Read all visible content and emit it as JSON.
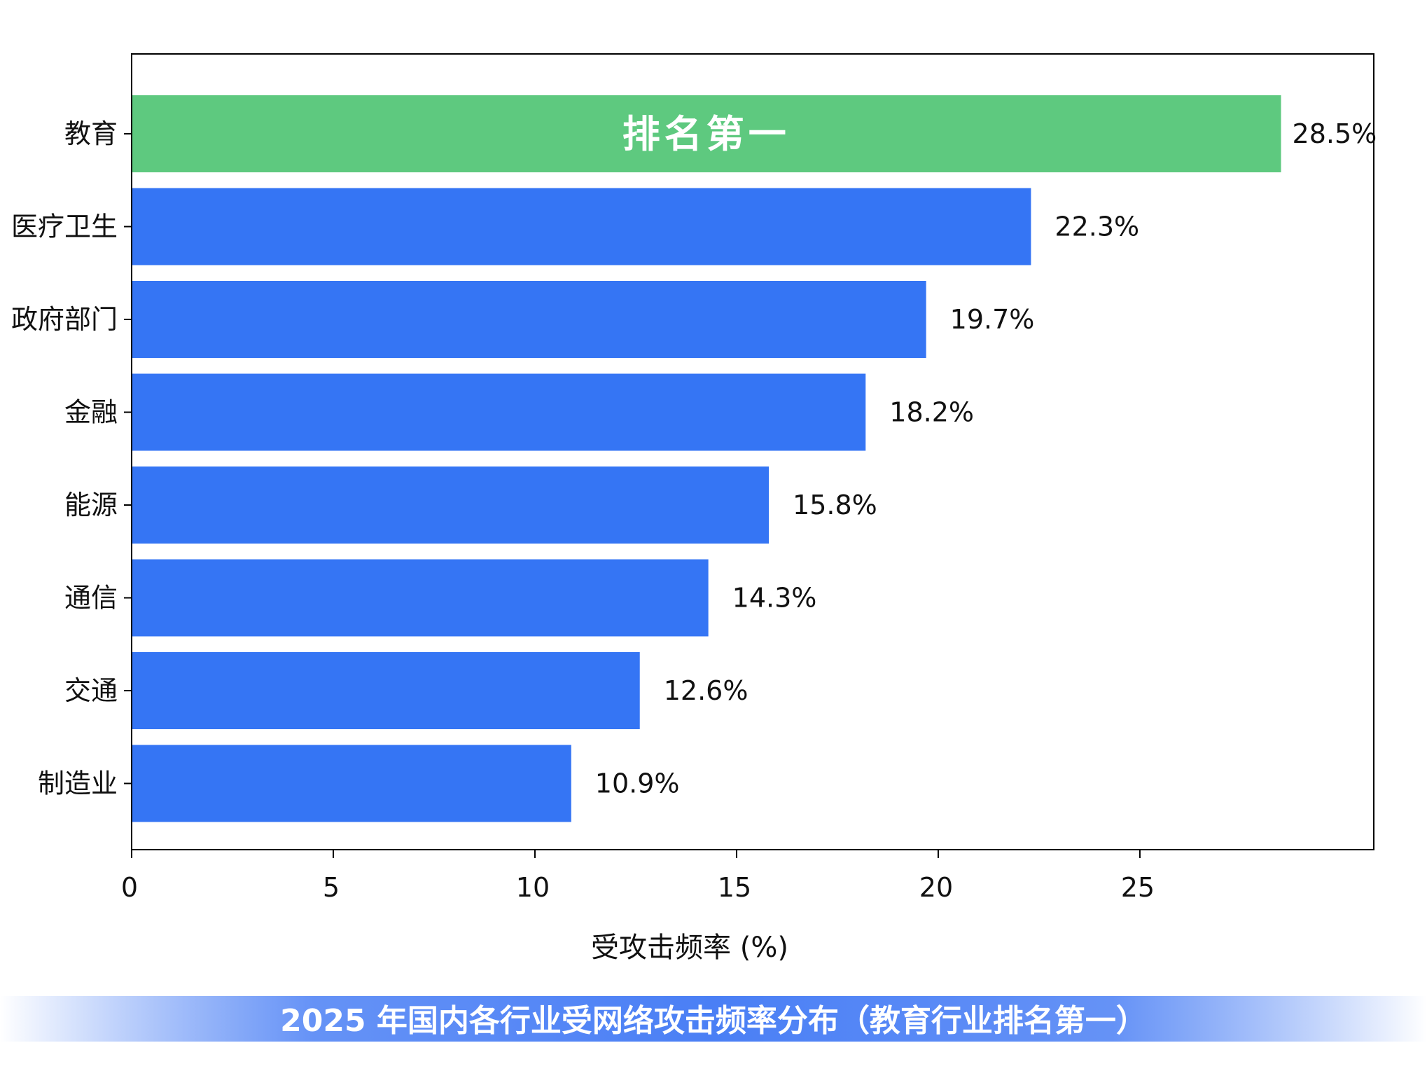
{
  "chart_data": {
    "type": "bar",
    "orientation": "horizontal",
    "categories": [
      "教育",
      "医疗卫生",
      "政府部门",
      "金融",
      "能源",
      "通信",
      "交通",
      "制造业"
    ],
    "values": [
      28.5,
      22.3,
      19.7,
      18.2,
      15.8,
      14.3,
      12.6,
      10.9
    ],
    "value_labels": [
      "28.5%",
      "22.3%",
      "19.7%",
      "18.2%",
      "15.8%",
      "14.3%",
      "12.6%",
      "10.9%"
    ],
    "xlabel": "受攻击频率 (%)",
    "ylabel": "",
    "xlim": [
      0,
      30.8
    ],
    "xticks": [
      0,
      5,
      10,
      15,
      20,
      25
    ],
    "grid": false,
    "highlight": {
      "index": 0,
      "text": "排名第一",
      "color": "#5ec97f"
    },
    "bar_color": "#3575f4",
    "caption": "2025 年国内各行业受网络攻击频率分布（教育行业排名第一）",
    "caption_color": "#4a7ff5"
  }
}
